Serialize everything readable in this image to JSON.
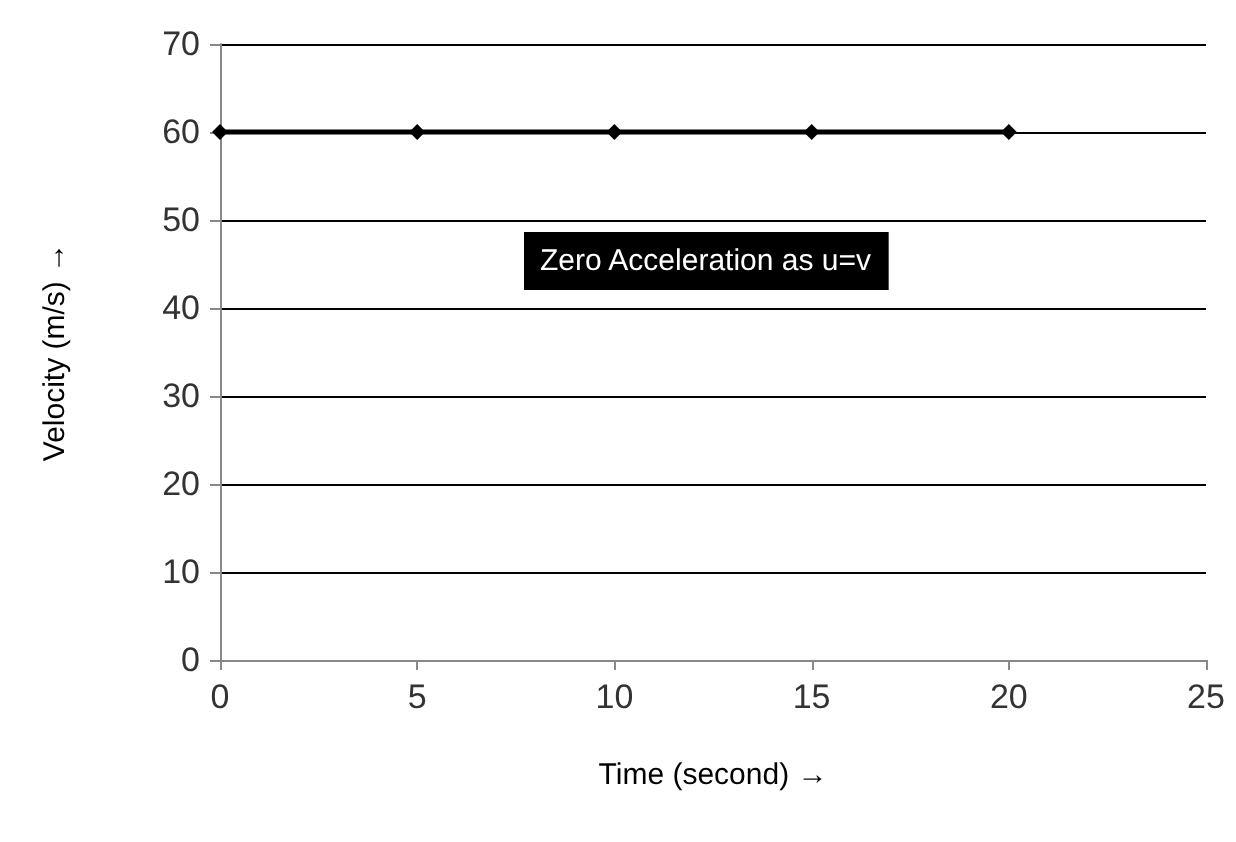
{
  "chart_data": {
    "type": "line",
    "xlabel": "Time (second) →",
    "ylabel": "Velocity (m/s) →",
    "x": [
      0,
      5,
      10,
      15,
      20
    ],
    "series": [
      {
        "color": "#000000",
        "values": [
          60,
          60,
          60,
          60,
          60
        ]
      }
    ],
    "xlim": [
      0,
      25
    ],
    "xticks": [
      0,
      5,
      10,
      15,
      20,
      25
    ],
    "ylim": [
      0,
      70
    ],
    "yticks": [
      0,
      10,
      20,
      30,
      40,
      50,
      60,
      70
    ],
    "grid": "y",
    "marker": "diamond",
    "line_style": "solid",
    "annotations": [
      "Zero Acceleration as u=v"
    ]
  }
}
